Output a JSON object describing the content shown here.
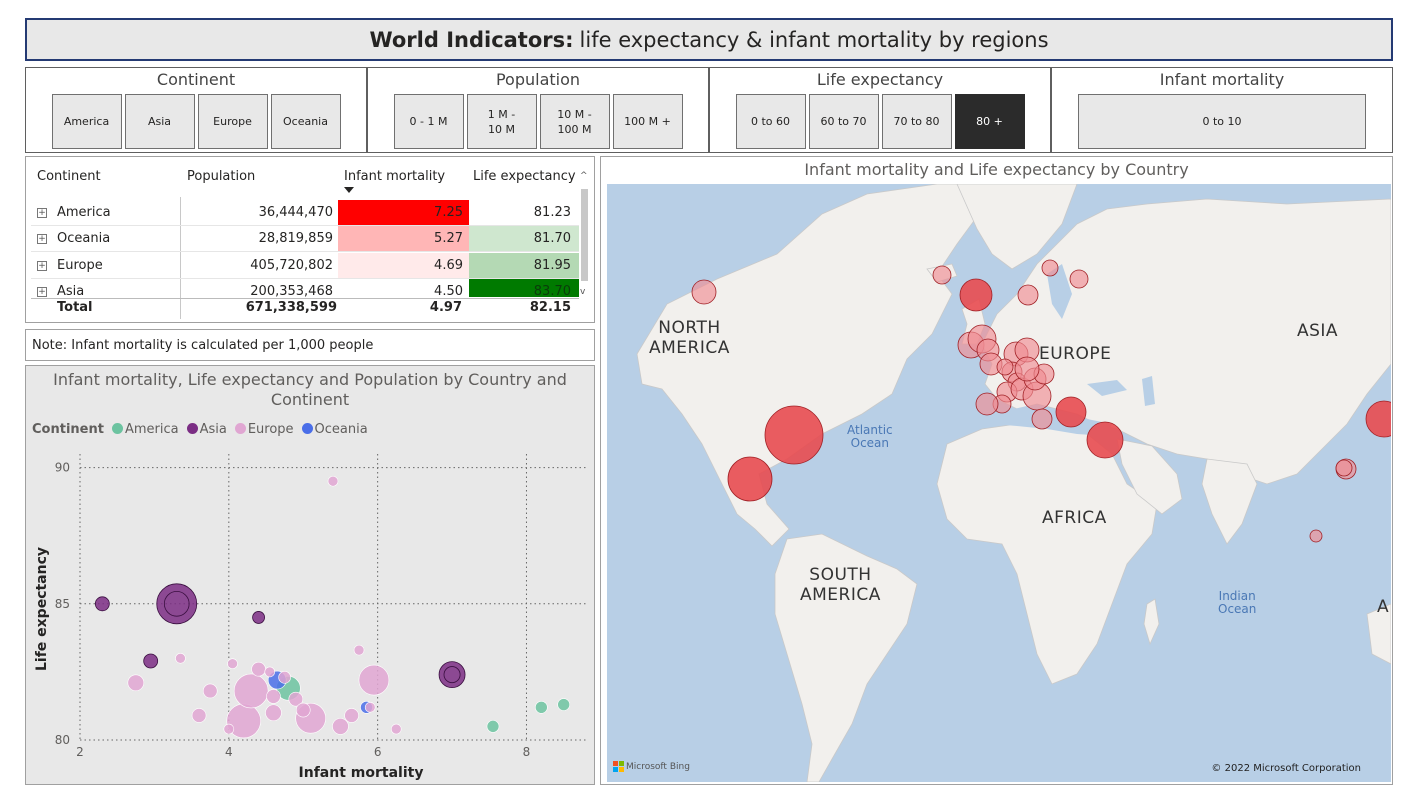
{
  "title": {
    "bold": "World Indicators:",
    "rest": "life expectancy & infant mortality by regions"
  },
  "slicers": [
    {
      "title": "Continent",
      "options": [
        "America",
        "Asia",
        "Europe",
        "Oceania"
      ]
    },
    {
      "title": "Population",
      "options": [
        "0 - 1 M",
        "1 M - 10 M",
        "10 M - 100 M",
        "100 M +"
      ]
    },
    {
      "title": "Life expectancy",
      "options": [
        "0 to 60",
        "60 to 70",
        "70 to 80",
        "80 +"
      ],
      "selected": "80 +"
    },
    {
      "title": "Infant mortality",
      "options": [
        "0 to 10"
      ]
    }
  ],
  "table": {
    "headers": [
      "Continent",
      "Population",
      "Infant mortality",
      "Life expectancy"
    ],
    "rows": [
      {
        "continent": "America",
        "population": "36,444,470",
        "infant": "7.25",
        "life": "81.23",
        "infant_bg": "#ff0000",
        "life_bg": "#ffffff"
      },
      {
        "continent": "Oceania",
        "population": "28,819,859",
        "infant": "5.27",
        "life": "81.70",
        "infant_bg": "#ffb6b6",
        "life_bg": "#cfe7cf"
      },
      {
        "continent": "Europe",
        "population": "405,720,802",
        "infant": "4.69",
        "life": "81.95",
        "infant_bg": "#ffeaea",
        "life_bg": "#b4d9b4"
      },
      {
        "continent": "Asia",
        "population": "200,353,468",
        "infant": "4.50",
        "life": "83.70",
        "infant_bg": "#ffffff",
        "life_bg": "#007a00"
      }
    ],
    "total": {
      "label": "Total",
      "population": "671,338,599",
      "infant": "4.97",
      "life": "82.15"
    }
  },
  "note": "Note: Infant mortality is calculated per 1,000 people",
  "chart_data": {
    "type": "scatter",
    "title": "Infant mortality, Life expectancy and Population by Country and Continent",
    "xlabel": "Infant mortality",
    "ylabel": "Life expectancy",
    "xlim": [
      2,
      8.8
    ],
    "ylim": [
      80,
      90.5
    ],
    "xticks": [
      "2",
      "4",
      "6",
      "8"
    ],
    "yticks": [
      "80",
      "85",
      "90"
    ],
    "grid": true,
    "legend_title": "Continent",
    "legend_position": "top-left",
    "series": [
      {
        "name": "America",
        "color": "#6cc3a0",
        "points": [
          {
            "x": 4.8,
            "y": 81.9,
            "r": 12
          },
          {
            "x": 7.55,
            "y": 80.5,
            "r": 6
          },
          {
            "x": 8.2,
            "y": 81.2,
            "r": 6
          },
          {
            "x": 8.5,
            "y": 81.3,
            "r": 6
          }
        ]
      },
      {
        "name": "Asia",
        "color": "#7b2d84",
        "points": [
          {
            "x": 3.3,
            "y": 85.0,
            "r": 20
          },
          {
            "x": 2.3,
            "y": 85.0,
            "r": 7
          },
          {
            "x": 4.4,
            "y": 84.5,
            "r": 6
          },
          {
            "x": 2.95,
            "y": 82.9,
            "r": 7
          },
          {
            "x": 7.0,
            "y": 82.4,
            "r": 13
          }
        ]
      },
      {
        "name": "Europe",
        "color": "#e0a6d2",
        "points": [
          {
            "x": 5.4,
            "y": 89.5,
            "r": 5
          },
          {
            "x": 4.2,
            "y": 80.7,
            "r": 17
          },
          {
            "x": 4.3,
            "y": 81.8,
            "r": 17
          },
          {
            "x": 5.1,
            "y": 80.8,
            "r": 15
          },
          {
            "x": 5.95,
            "y": 82.2,
            "r": 15
          },
          {
            "x": 2.75,
            "y": 82.1,
            "r": 8
          },
          {
            "x": 3.35,
            "y": 83.0,
            "r": 5
          },
          {
            "x": 3.75,
            "y": 81.8,
            "r": 7
          },
          {
            "x": 3.6,
            "y": 80.9,
            "r": 7
          },
          {
            "x": 4.05,
            "y": 82.8,
            "r": 5
          },
          {
            "x": 4.4,
            "y": 82.6,
            "r": 7
          },
          {
            "x": 4.6,
            "y": 81.6,
            "r": 7
          },
          {
            "x": 4.6,
            "y": 81.0,
            "r": 8
          },
          {
            "x": 4.75,
            "y": 82.3,
            "r": 6
          },
          {
            "x": 4.9,
            "y": 81.5,
            "r": 7
          },
          {
            "x": 5.0,
            "y": 81.1,
            "r": 7
          },
          {
            "x": 5.65,
            "y": 80.9,
            "r": 7
          },
          {
            "x": 5.75,
            "y": 83.3,
            "r": 5
          },
          {
            "x": 5.5,
            "y": 80.5,
            "r": 8
          },
          {
            "x": 6.25,
            "y": 80.4,
            "r": 5
          },
          {
            "x": 5.9,
            "y": 81.2,
            "r": 5
          },
          {
            "x": 4.0,
            "y": 80.4,
            "r": 5
          },
          {
            "x": 4.55,
            "y": 82.5,
            "r": 5
          }
        ]
      },
      {
        "name": "Oceania",
        "color": "#4a6ee8",
        "points": [
          {
            "x": 4.65,
            "y": 82.2,
            "r": 9
          },
          {
            "x": 5.85,
            "y": 81.2,
            "r": 6
          }
        ]
      }
    ]
  },
  "map": {
    "title": "Infant mortality and Life expectancy by Country",
    "labels": [
      {
        "text": "NORTH\nAMERICA",
        "left": 42,
        "top": 134
      },
      {
        "text": "EUROPE",
        "left": 432,
        "top": 160
      },
      {
        "text": "ASIA",
        "left": 690,
        "top": 137
      },
      {
        "text": "AFRICA",
        "left": 435,
        "top": 324
      },
      {
        "text": "SOUTH\nAMERICA",
        "left": 193,
        "top": 381
      },
      {
        "text": "A",
        "left": 770,
        "top": 413
      }
    ],
    "oceans": [
      {
        "text": "Atlantic\nOcean",
        "left": 240,
        "top": 240
      },
      {
        "text": "Indian\nOcean",
        "left": 611,
        "top": 406
      }
    ],
    "bing": "Microsoft Bing",
    "copyright": "© 2022 Microsoft Corporation"
  }
}
